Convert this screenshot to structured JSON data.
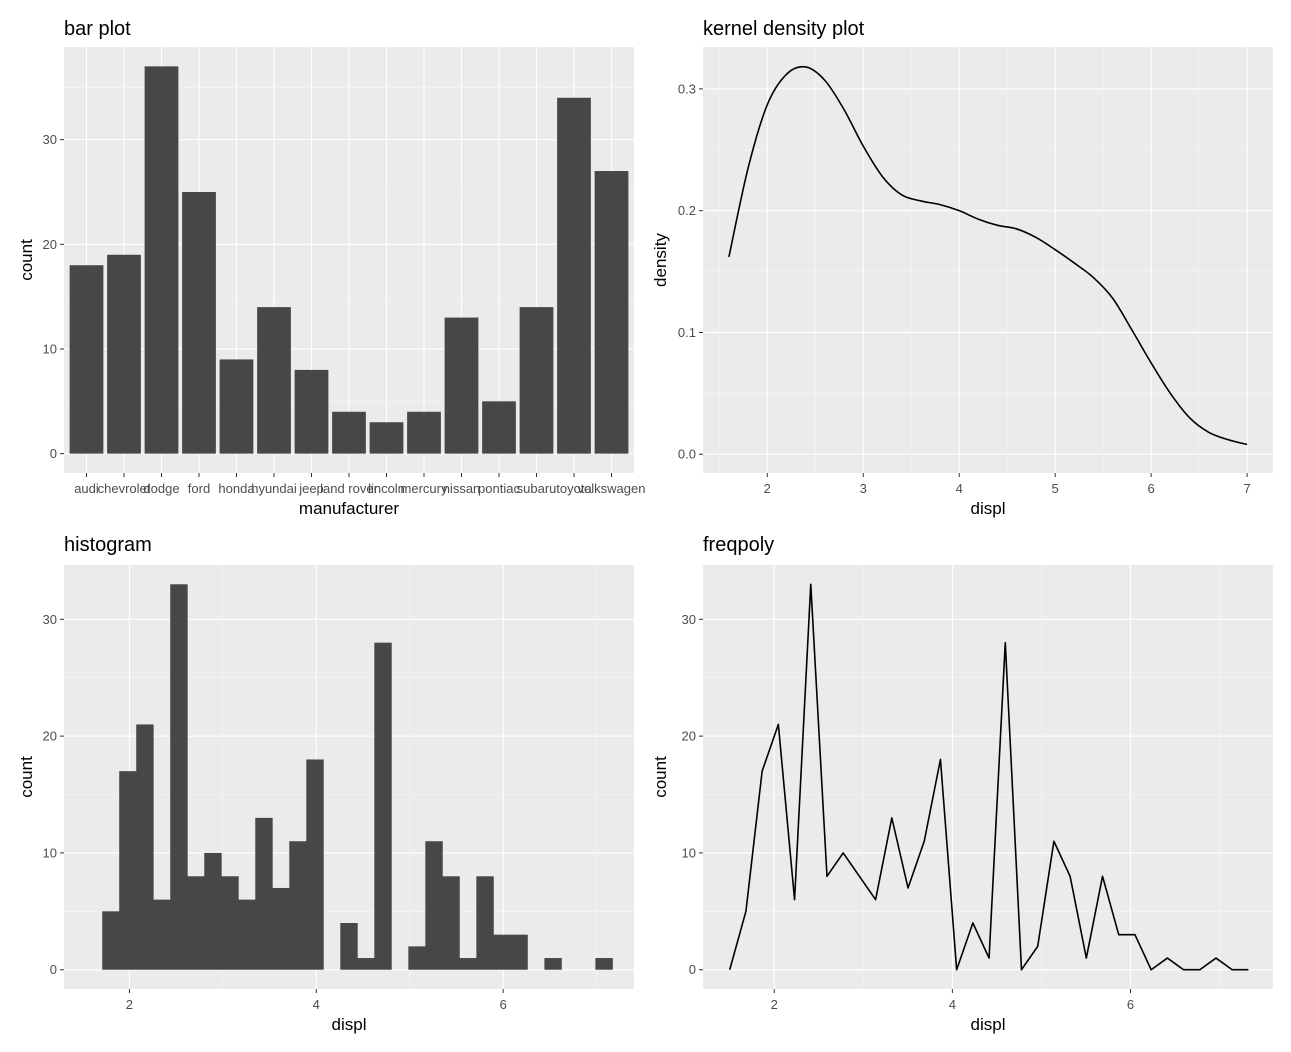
{
  "chart_data": [
    {
      "id": "bar",
      "type": "bar",
      "title": "bar plot",
      "xlabel": "manufacturer",
      "ylabel": "count",
      "categories": [
        "audi",
        "chevrolet",
        "dodge",
        "ford",
        "honda",
        "hyundai",
        "jeep",
        "land rover",
        "lincoln",
        "mercury",
        "nissan",
        "pontiac",
        "subaru",
        "toyota",
        "volkswagen"
      ],
      "values": [
        18,
        19,
        37,
        25,
        9,
        14,
        8,
        4,
        3,
        4,
        13,
        5,
        14,
        34,
        27
      ],
      "ylim": [
        -1.85,
        38.85
      ],
      "yticks": [
        0,
        10,
        20,
        30
      ]
    },
    {
      "id": "kde",
      "type": "line",
      "title": "kernel density plot",
      "xlabel": "displ",
      "ylabel": "density",
      "xlim": [
        1.33,
        7.27
      ],
      "ylim": [
        -0.0154,
        0.3344
      ],
      "xticks": [
        2,
        3,
        4,
        5,
        6,
        7
      ],
      "yticks": [
        0.0,
        0.1,
        0.2,
        0.3
      ],
      "ytick_labels": [
        "0.0",
        "0.1",
        "0.2",
        "0.3"
      ],
      "x": [
        1.6,
        1.8,
        2.0,
        2.2,
        2.4,
        2.6,
        2.8,
        3.0,
        3.2,
        3.4,
        3.6,
        3.8,
        4.0,
        4.2,
        4.4,
        4.6,
        4.8,
        5.0,
        5.2,
        5.4,
        5.6,
        5.8,
        6.0,
        6.2,
        6.4,
        6.6,
        6.8,
        7.0
      ],
      "y": [
        0.162,
        0.235,
        0.287,
        0.312,
        0.318,
        0.307,
        0.283,
        0.253,
        0.228,
        0.213,
        0.208,
        0.205,
        0.2,
        0.193,
        0.188,
        0.185,
        0.178,
        0.168,
        0.157,
        0.145,
        0.128,
        0.102,
        0.075,
        0.05,
        0.03,
        0.018,
        0.012,
        0.008
      ]
    },
    {
      "id": "hist",
      "type": "bar",
      "title": "histogram",
      "xlabel": "displ",
      "ylabel": "count",
      "xlim": [
        1.3,
        7.4
      ],
      "ylim": [
        -1.65,
        34.65
      ],
      "xticks": [
        2,
        4,
        6
      ],
      "yticks": [
        0,
        10,
        20,
        30
      ],
      "bin_width": 0.182,
      "bin_centers": [
        1.8,
        1.982,
        2.164,
        2.346,
        2.528,
        2.71,
        2.892,
        3.074,
        3.256,
        3.438,
        3.62,
        3.802,
        3.984,
        4.166,
        4.348,
        4.53,
        4.712,
        4.894,
        5.076,
        5.258,
        5.44,
        5.622,
        5.804,
        5.986,
        6.168,
        6.35,
        6.532,
        6.714,
        6.896,
        7.078
      ],
      "values": [
        5,
        17,
        21,
        6,
        33,
        8,
        10,
        8,
        6,
        13,
        7,
        11,
        18,
        0,
        4,
        1,
        28,
        0,
        2,
        11,
        8,
        1,
        8,
        3,
        3,
        0,
        1,
        0,
        0,
        1
      ]
    },
    {
      "id": "freq",
      "type": "line",
      "title": "freqpoly",
      "xlabel": "displ",
      "ylabel": "count",
      "xlim": [
        1.2,
        7.6
      ],
      "ylim": [
        -1.65,
        34.65
      ],
      "xticks": [
        2,
        4,
        6
      ],
      "yticks": [
        0,
        10,
        20,
        30
      ],
      "x": [
        1.5,
        1.682,
        1.864,
        2.046,
        2.228,
        2.41,
        2.592,
        2.774,
        2.956,
        3.138,
        3.32,
        3.502,
        3.684,
        3.866,
        4.048,
        4.23,
        4.412,
        4.594,
        4.776,
        4.958,
        5.14,
        5.322,
        5.504,
        5.686,
        5.868,
        6.05,
        6.232,
        6.414,
        6.596,
        6.778,
        6.96,
        7.142,
        7.324
      ],
      "y": [
        0,
        5,
        17,
        21,
        6,
        33,
        8,
        10,
        8,
        6,
        13,
        7,
        11,
        18,
        0,
        4,
        1,
        28,
        0,
        2,
        11,
        8,
        1,
        8,
        3,
        3,
        0,
        1,
        0,
        0,
        1,
        0,
        0
      ]
    }
  ]
}
